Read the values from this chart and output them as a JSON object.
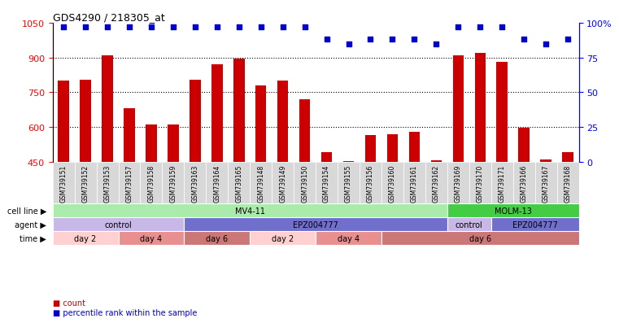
{
  "title": "GDS4290 / 218305_at",
  "samples": [
    "GSM739151",
    "GSM739152",
    "GSM739153",
    "GSM739157",
    "GSM739158",
    "GSM739159",
    "GSM739163",
    "GSM739164",
    "GSM739165",
    "GSM739148",
    "GSM739149",
    "GSM739150",
    "GSM739154",
    "GSM739155",
    "GSM739156",
    "GSM739160",
    "GSM739161",
    "GSM739162",
    "GSM739169",
    "GSM739170",
    "GSM739171",
    "GSM739166",
    "GSM739167",
    "GSM739168"
  ],
  "counts": [
    800,
    805,
    910,
    680,
    610,
    612,
    805,
    870,
    895,
    780,
    800,
    720,
    490,
    453,
    565,
    570,
    580,
    457,
    910,
    920,
    880,
    595,
    460,
    490
  ],
  "percentile_ranks": [
    97,
    97,
    97,
    97,
    97,
    97,
    97,
    97,
    97,
    97,
    97,
    97,
    88,
    85,
    88,
    88,
    88,
    85,
    97,
    97,
    97,
    88,
    85,
    88
  ],
  "bar_color": "#cc0000",
  "dot_color": "#0000cc",
  "ylim_left": [
    450,
    1050
  ],
  "ylim_right": [
    0,
    100
  ],
  "yticks_left": [
    450,
    600,
    750,
    900,
    1050
  ],
  "yticks_right": [
    0,
    25,
    50,
    75,
    100
  ],
  "grid_values": [
    600,
    750,
    900
  ],
  "cell_line_regions": [
    {
      "label": "MV4-11",
      "start": 0,
      "end": 18,
      "color": "#aaeaaa"
    },
    {
      "label": "MOLM-13",
      "start": 18,
      "end": 24,
      "color": "#44cc44"
    }
  ],
  "agent_regions": [
    {
      "label": "control",
      "start": 0,
      "end": 6,
      "color": "#c8b8e8"
    },
    {
      "label": "EPZ004777",
      "start": 6,
      "end": 18,
      "color": "#7070cc"
    },
    {
      "label": "control",
      "start": 18,
      "end": 20,
      "color": "#c8b8e8"
    },
    {
      "label": "EPZ004777",
      "start": 20,
      "end": 24,
      "color": "#7070cc"
    }
  ],
  "time_regions": [
    {
      "label": "day 2",
      "start": 0,
      "end": 3,
      "color": "#ffd0d0"
    },
    {
      "label": "day 4",
      "start": 3,
      "end": 6,
      "color": "#e89090"
    },
    {
      "label": "day 6",
      "start": 6,
      "end": 9,
      "color": "#cc7777"
    },
    {
      "label": "day 2",
      "start": 9,
      "end": 12,
      "color": "#ffd0d0"
    },
    {
      "label": "day 4",
      "start": 12,
      "end": 15,
      "color": "#e89090"
    },
    {
      "label": "day 6",
      "start": 15,
      "end": 24,
      "color": "#cc7777"
    }
  ],
  "sample_label_bg": "#d8d8d8",
  "legend_count_color": "#cc0000",
  "legend_pct_color": "#0000cc"
}
